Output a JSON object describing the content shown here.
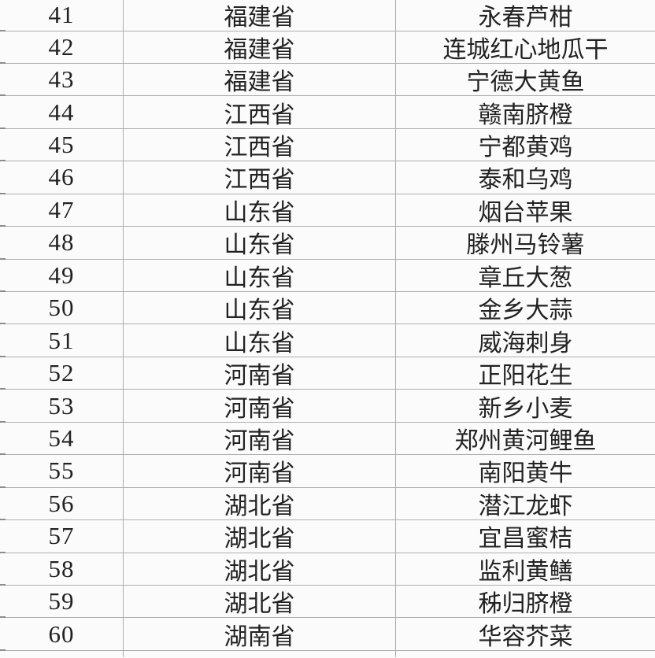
{
  "page": {
    "background": "#fbfbfb",
    "grid_color": "#aeaeae",
    "text_color": "#222222"
  },
  "table": {
    "rows": [
      {
        "index": "41",
        "province": "福建省",
        "product": "永春芦柑"
      },
      {
        "index": "42",
        "province": "福建省",
        "product": "连城红心地瓜干"
      },
      {
        "index": "43",
        "province": "福建省",
        "product": "宁德大黄鱼"
      },
      {
        "index": "44",
        "province": "江西省",
        "product": "赣南脐橙"
      },
      {
        "index": "45",
        "province": "江西省",
        "product": "宁都黄鸡"
      },
      {
        "index": "46",
        "province": "江西省",
        "product": "泰和乌鸡"
      },
      {
        "index": "47",
        "province": "山东省",
        "product": "烟台苹果"
      },
      {
        "index": "48",
        "province": "山东省",
        "product": "滕州马铃薯"
      },
      {
        "index": "49",
        "province": "山东省",
        "product": "章丘大葱"
      },
      {
        "index": "50",
        "province": "山东省",
        "product": "金乡大蒜"
      },
      {
        "index": "51",
        "province": "山东省",
        "product": "威海刺身"
      },
      {
        "index": "52",
        "province": "河南省",
        "product": "正阳花生"
      },
      {
        "index": "53",
        "province": "河南省",
        "product": "新乡小麦"
      },
      {
        "index": "54",
        "province": "河南省",
        "product": "郑州黄河鲤鱼"
      },
      {
        "index": "55",
        "province": "河南省",
        "product": "南阳黄牛"
      },
      {
        "index": "56",
        "province": "湖北省",
        "product": "潜江龙虾"
      },
      {
        "index": "57",
        "province": "湖北省",
        "product": "宜昌蜜桔"
      },
      {
        "index": "58",
        "province": "湖北省",
        "product": "监利黄鳝"
      },
      {
        "index": "59",
        "province": "湖北省",
        "product": "秭归脐橙"
      },
      {
        "index": "60",
        "province": "湖南省",
        "product": "华容芥菜"
      }
    ]
  }
}
